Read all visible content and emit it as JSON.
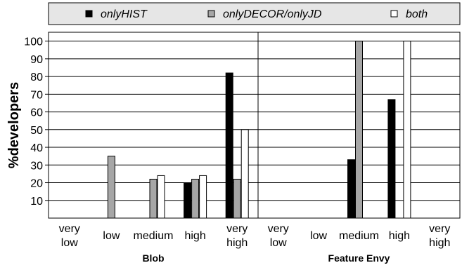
{
  "chart_data": {
    "type": "bar",
    "ylabel": "%developers",
    "ylim": [
      0,
      105
    ],
    "yticks": [
      10,
      20,
      30,
      40,
      50,
      60,
      70,
      80,
      90,
      100
    ],
    "grid": true,
    "legend_position": "top",
    "categories": [
      "very low",
      "low",
      "medium",
      "high",
      "very high"
    ],
    "series": [
      {
        "name": "onlyHIST",
        "color": "#000000"
      },
      {
        "name": "onlyDECOR/onlyJD",
        "color": "#a6a6a6"
      },
      {
        "name": "both",
        "color": "#ffffff"
      }
    ],
    "panels": [
      {
        "label": "Blob",
        "values": [
          [
            null,
            null,
            null,
            20,
            82
          ],
          [
            null,
            35,
            22,
            22,
            22
          ],
          [
            null,
            null,
            24,
            24,
            50
          ]
        ]
      },
      {
        "label": "Feature Envy",
        "values": [
          [
            null,
            null,
            33,
            67,
            null
          ],
          [
            null,
            null,
            100,
            null,
            null
          ],
          [
            null,
            null,
            null,
            100,
            null
          ]
        ]
      }
    ]
  }
}
